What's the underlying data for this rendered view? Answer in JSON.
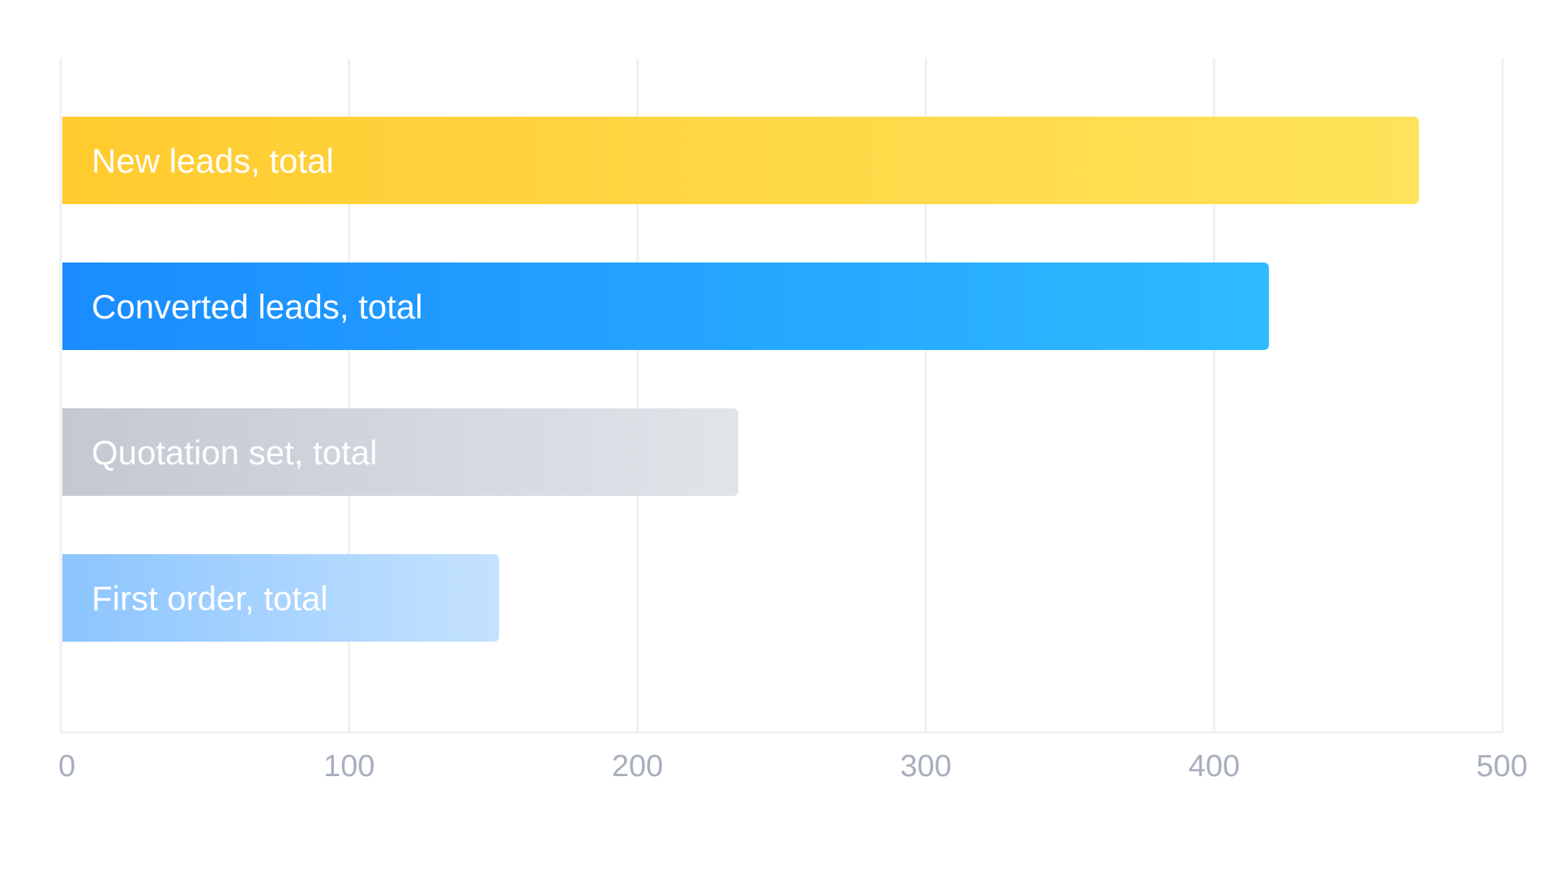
{
  "chart_data": {
    "type": "bar",
    "orientation": "horizontal",
    "categories": [
      "New leads, total",
      "Converted leads, total",
      "Quotation set, total",
      "First order, total"
    ],
    "values": [
      471,
      419,
      235,
      152
    ],
    "x_ticks": [
      "0",
      "100",
      "200",
      "300",
      "400",
      "500"
    ],
    "xlim": [
      0,
      500
    ],
    "grid": true,
    "legend": "none",
    "colors": [
      [
        "#ffcb2f",
        "#ffe35a"
      ],
      [
        "#1a8cff",
        "#2ebaff"
      ],
      [
        "#c3c8d2",
        "#e1e4e9"
      ],
      [
        "#8cc5ff",
        "#c5e2ff"
      ]
    ],
    "title": "",
    "xlabel": "",
    "ylabel": ""
  }
}
